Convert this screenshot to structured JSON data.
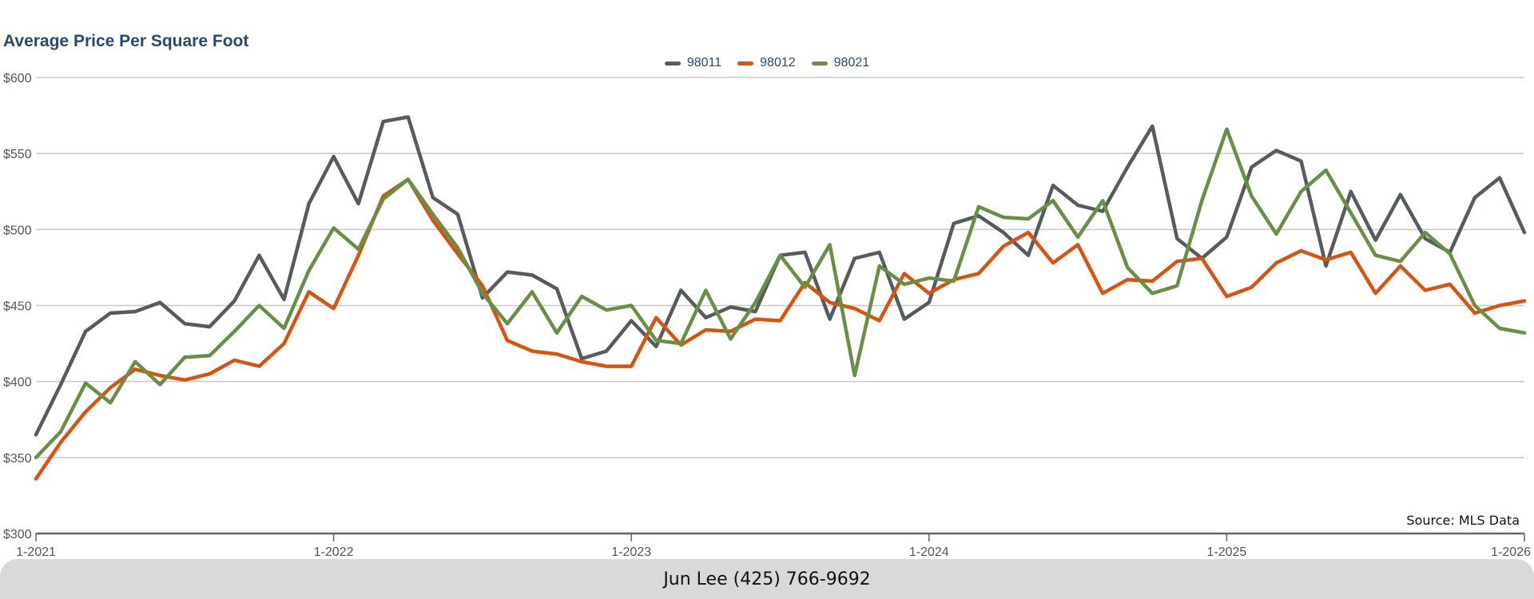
{
  "chart_data": {
    "type": "line",
    "title": "Average Price Per Square Foot",
    "xlabel": "",
    "ylabel": "",
    "ylim": [
      300,
      600
    ],
    "y_ticks": [
      "$300",
      "$350",
      "$400",
      "$450",
      "$500",
      "$550",
      "$600"
    ],
    "y_tick_values": [
      300,
      350,
      400,
      450,
      500,
      550,
      600
    ],
    "x_ticks": [
      "1-2021",
      "1-2022",
      "1-2023",
      "1-2024",
      "1-2025",
      "1-2026"
    ],
    "x_start": "1-2021",
    "x_end": "1-2026",
    "grid": true,
    "legend_position": "top-center",
    "series": [
      {
        "name": "98011",
        "color": "#555b5f",
        "values": [
          365,
          398,
          433,
          445,
          446,
          452,
          438,
          436,
          453,
          483,
          454,
          517,
          548,
          517,
          571,
          574,
          521,
          510,
          455,
          472,
          470,
          461,
          415,
          420,
          440,
          423,
          460,
          442,
          449,
          446,
          483,
          485,
          441,
          481,
          485,
          441,
          452,
          504,
          509,
          498,
          483,
          529,
          516,
          512,
          541,
          568,
          494,
          481,
          495,
          541,
          552,
          545,
          476,
          525,
          493,
          523,
          494,
          485,
          521,
          534,
          498
        ]
      },
      {
        "name": "98012",
        "color": "#d9530f",
        "values": [
          336,
          360,
          380,
          396,
          408,
          404,
          401,
          405,
          414,
          410,
          425,
          459,
          448,
          483,
          522,
          533,
          506,
          484,
          463,
          427,
          420,
          418,
          413,
          410,
          410,
          442,
          424,
          434,
          433,
          441,
          440,
          465,
          452,
          448,
          440,
          471,
          458,
          467,
          471,
          489,
          498,
          478,
          490,
          458,
          467,
          466,
          479,
          481,
          456,
          462,
          478,
          486,
          480,
          485,
          458,
          476,
          460,
          464,
          445,
          450,
          453
        ]
      },
      {
        "name": "98021",
        "color": "#678f45",
        "values": [
          350,
          367,
          399,
          386,
          413,
          398,
          416,
          417,
          433,
          450,
          435,
          473,
          501,
          487,
          520,
          533,
          510,
          488,
          458,
          438,
          459,
          432,
          456,
          447,
          450,
          427,
          425,
          460,
          428,
          452,
          483,
          462,
          490,
          404,
          476,
          464,
          468,
          466,
          515,
          508,
          507,
          519,
          495,
          519,
          475,
          458,
          463,
          519,
          566,
          522,
          497,
          525,
          539,
          511,
          483,
          479,
          498,
          484,
          450,
          435,
          432
        ]
      }
    ]
  },
  "source_note": "Source: MLS Data",
  "footer": {
    "text": "Jun Lee (425) 766-9692"
  }
}
